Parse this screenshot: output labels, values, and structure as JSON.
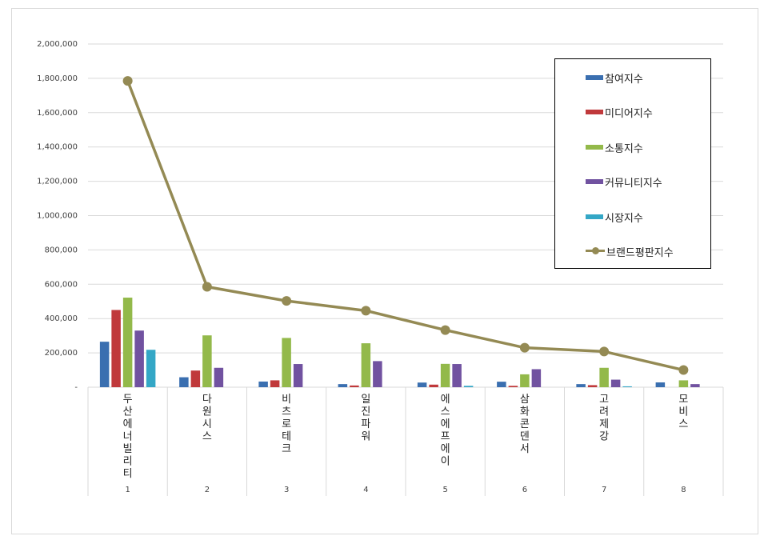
{
  "chart_data": {
    "type": "bar",
    "ylim": [
      0,
      2000000
    ],
    "y_ticks": [
      "-",
      "200,000",
      "400,000",
      "600,000",
      "800,000",
      "1,000,000",
      "1,200,000",
      "1,400,000",
      "1,600,000",
      "1,800,000",
      "2,000,000"
    ],
    "y_tick_values": [
      0,
      200000,
      400000,
      600000,
      800000,
      1000000,
      1200000,
      1400000,
      1600000,
      1800000,
      2000000
    ],
    "grid": true,
    "legend_position": "top-right",
    "categories": [
      "두산에너빌리티",
      "다원시스",
      "비츠로테크",
      "일진파워",
      "에스에프에이",
      "삼화콘덴서",
      "고려제강",
      "모비스"
    ],
    "ranks": [
      "1",
      "2",
      "3",
      "4",
      "5",
      "6",
      "7",
      "8"
    ],
    "series": [
      {
        "name": "참여지수",
        "type": "bar",
        "color": "#3a6fb0",
        "values": [
          265000,
          58000,
          33000,
          18000,
          27000,
          32000,
          18000,
          28000
        ]
      },
      {
        "name": "미디어지수",
        "type": "bar",
        "color": "#c0393b",
        "values": [
          450000,
          97000,
          40000,
          10000,
          15000,
          8000,
          12000,
          0
        ]
      },
      {
        "name": "소통지수",
        "type": "bar",
        "color": "#93b94a",
        "values": [
          522000,
          302000,
          287000,
          256000,
          136000,
          75000,
          113000,
          40000
        ]
      },
      {
        "name": "커뮤니티지수",
        "type": "bar",
        "color": "#7152a0",
        "values": [
          330000,
          113000,
          135000,
          152000,
          135000,
          105000,
          44000,
          18000
        ]
      },
      {
        "name": "시장지수",
        "type": "bar",
        "color": "#34a7c6",
        "values": [
          218000,
          0,
          0,
          0,
          8000,
          0,
          5000,
          0
        ]
      },
      {
        "name": "브랜드평판지수",
        "type": "line",
        "color": "#948a54",
        "values": [
          1785000,
          585000,
          503000,
          446000,
          333000,
          230000,
          208000,
          100000
        ]
      }
    ]
  }
}
